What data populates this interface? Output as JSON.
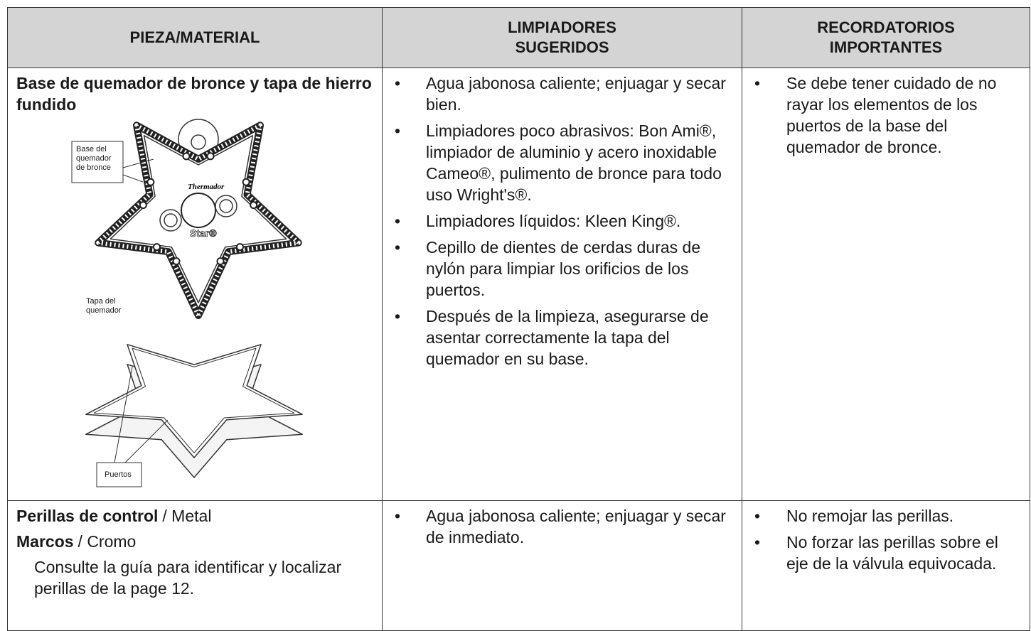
{
  "table": {
    "header": [
      [
        "PIEZA/MATERIAL"
      ],
      [
        "LIMPIADORES",
        "SUGERIDOS"
      ],
      [
        "RECORDATORIOS",
        "IMPORTANTES"
      ]
    ],
    "rows": [
      {
        "part": {
          "title": "Base de quemador de bronce y tapa de hierro fundido",
          "figure": {
            "base_label": "Base del quemador de bronce",
            "brand": "Thermador",
            "model": "Star®",
            "cap_label": "Tapa del quemador",
            "ports_label": "Puertos"
          }
        },
        "cleaners": [
          "Agua jabonosa caliente; enjuagar y secar bien.",
          "Limpiadores poco abrasivos: Bon Ami®, limpiador de aluminio y acero inoxidable Cameo®, pulimento de bronce para todo uso Wright's®.",
          "Limpiadores líquidos: Kleen King®.",
          "Cepillo de dientes de cerdas duras de nylón para limpiar los orificios de los puertos.",
          "Después de la limpieza, asegurarse de asentar correctamente la tapa del quemador en su base."
        ],
        "reminders": [
          "Se debe tener cuidado de no rayar los elementos de los puertos de la base del quemador de bronce."
        ]
      },
      {
        "part": {
          "lines": [
            {
              "bold": "Perillas de control",
              "text": "/ Metal"
            },
            {
              "bold": "Marcos",
              "text": "/ Cromo"
            }
          ],
          "note": "Consulte la guía para identificar y localizar perillas de la page 12."
        },
        "cleaners": [
          "Agua jabonosa caliente; enjuagar y secar de inmediato."
        ],
        "reminders": [
          "No remojar las perillas.",
          "No forzar las perillas sobre el eje de la válvula equivocada."
        ]
      }
    ]
  }
}
